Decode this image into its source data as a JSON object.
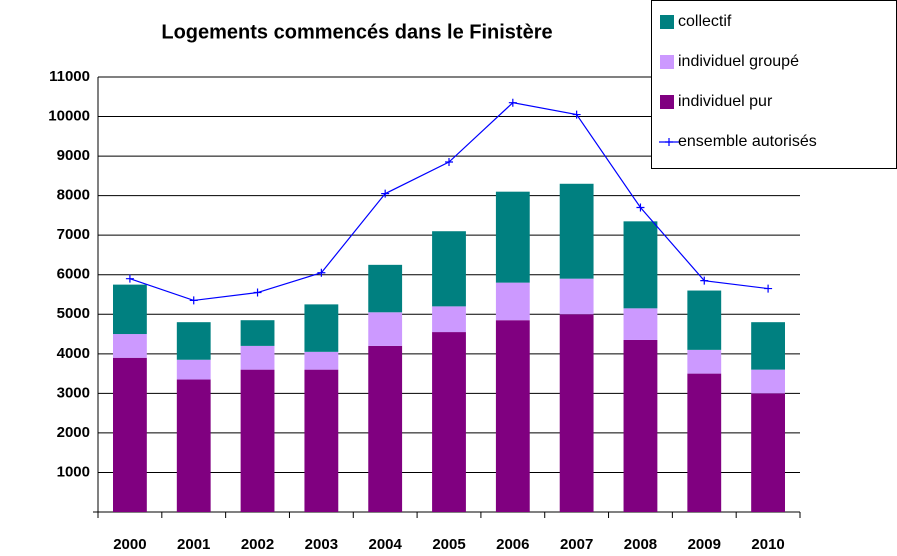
{
  "chart_data": {
    "type": "bar",
    "stacked": true,
    "title": "Logements commencés dans le Finistère",
    "categories": [
      "2000",
      "2001",
      "2002",
      "2003",
      "2004",
      "2005",
      "2006",
      "2007",
      "2008",
      "2009",
      "2010"
    ],
    "series": [
      {
        "name": "individuel pur",
        "color": "#800080",
        "values": [
          3900,
          3350,
          3600,
          3600,
          4200,
          4550,
          4850,
          5000,
          4350,
          3500,
          3000
        ]
      },
      {
        "name": "individuel groupé",
        "color": "#cc99ff",
        "values": [
          600,
          500,
          600,
          450,
          850,
          650,
          950,
          900,
          800,
          600,
          600
        ]
      },
      {
        "name": "collectif",
        "color": "#008080",
        "values": [
          1250,
          950,
          650,
          1200,
          1200,
          1900,
          2300,
          2400,
          2200,
          1500,
          1200
        ]
      },
      {
        "name": "ensemble autorisés",
        "type": "line",
        "color": "#0000ff",
        "values": [
          5900,
          5350,
          5550,
          6050,
          8050,
          8850,
          10350,
          10050,
          7700,
          5850,
          5650
        ]
      }
    ],
    "ylim": [
      0,
      11000
    ],
    "yticks": [
      1000,
      2000,
      3000,
      4000,
      5000,
      6000,
      7000,
      8000,
      9000,
      10000,
      11000
    ],
    "grid": true,
    "legend": "top-right"
  }
}
